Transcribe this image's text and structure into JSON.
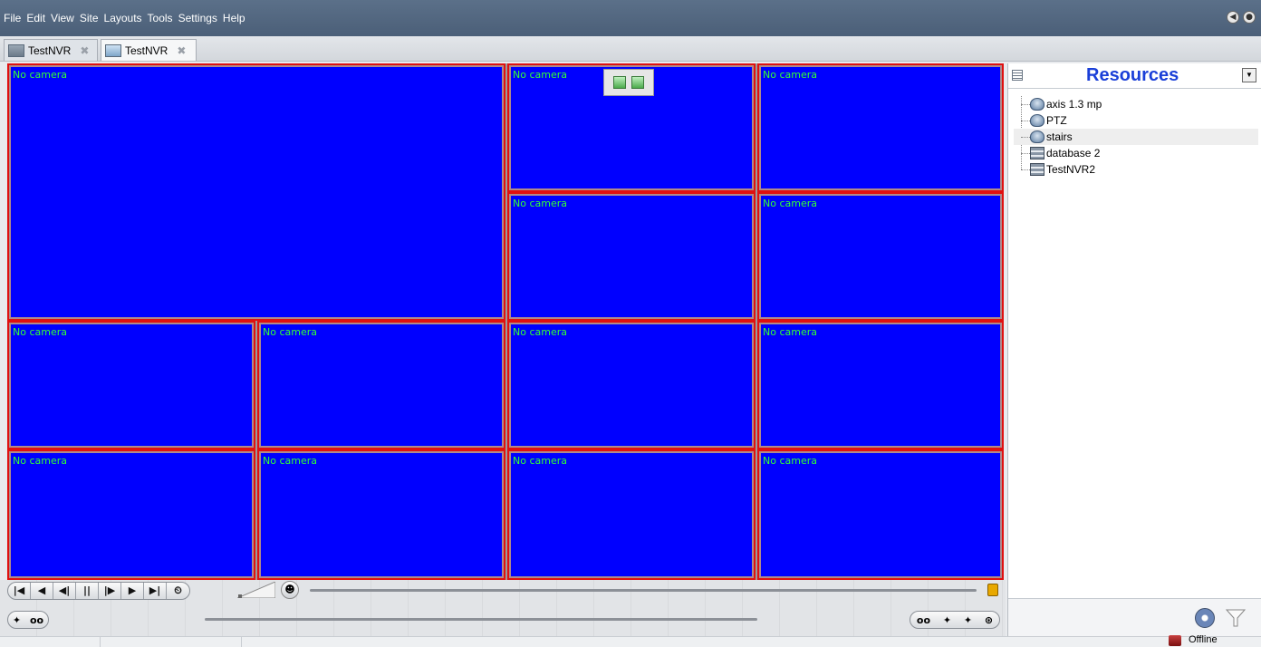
{
  "menubar": {
    "items": [
      "File",
      "Edit",
      "View",
      "Site",
      "Layouts",
      "Tools",
      "Settings",
      "Help"
    ],
    "icons": [
      "sound-icon",
      "microphone-icon"
    ]
  },
  "tabs": [
    {
      "label": "TestNVR",
      "icon": "server-icon",
      "active": false
    },
    {
      "label": "TestNVR",
      "icon": "layout-icon",
      "active": true
    }
  ],
  "grid": {
    "cell_label": "No camera",
    "cell_count": 13,
    "colors": {
      "cell": "#0000ff",
      "border": "#e01010",
      "label": "#33ff33"
    }
  },
  "resources": {
    "title": "Resources",
    "items": [
      {
        "label": "axis 1.3 mp",
        "icon": "camera-icon",
        "selected": false
      },
      {
        "label": "PTZ",
        "icon": "camera-icon",
        "selected": false
      },
      {
        "label": "stairs",
        "icon": "camera-icon",
        "selected": true
      },
      {
        "label": "database 2",
        "icon": "server-icon",
        "selected": false
      },
      {
        "label": "TestNVR2",
        "icon": "server-icon",
        "selected": false
      }
    ]
  },
  "playback": {
    "transport": [
      "|◀",
      "◀",
      "◀|",
      "||",
      "|▶",
      "▶",
      "▶|",
      "⏲"
    ],
    "left_pill": [
      "✦",
      "oo"
    ],
    "right_pill": [
      "oo",
      "✦",
      "✦",
      "⊛"
    ]
  },
  "status": {
    "connection": "Offline"
  }
}
